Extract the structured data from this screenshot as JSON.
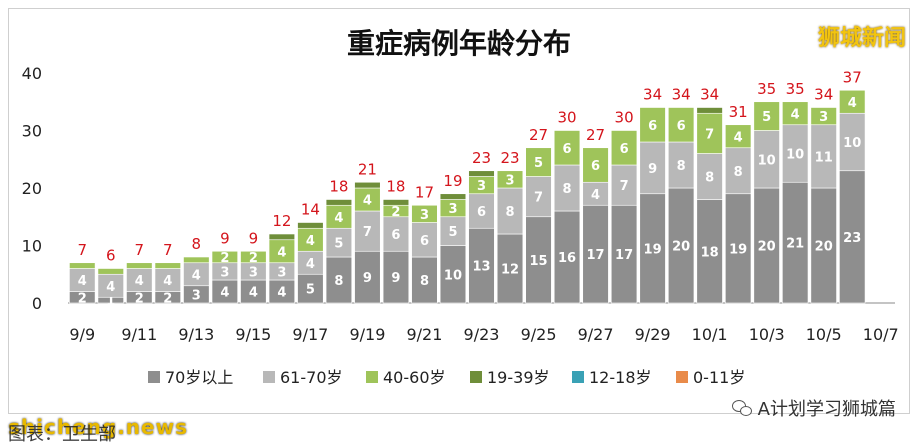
{
  "watermark": "狮城新闻",
  "footer": {
    "site": "shicheng.news",
    "caption": "图表：卫生部",
    "account": "A计划学习狮城篇"
  },
  "colors": {
    "70_plus": "#8e8e8e",
    "61_70": "#b8b8b8",
    "40_60": "#9fc45a",
    "19_39": "#6f8e3a",
    "12_18": "#3aa1b5",
    "0_11": "#e98b4a",
    "total_label": "#d4151c"
  },
  "chart_data": {
    "type": "bar",
    "stacked": true,
    "title": "重症病例年龄分布",
    "ylim": [
      0,
      40
    ],
    "yticks": [
      0,
      10,
      20,
      30,
      40
    ],
    "legend_position": "bottom",
    "grid": false,
    "categories": [
      "9/9",
      "9/10",
      "9/11",
      "9/12",
      "9/13",
      "9/14",
      "9/15",
      "9/16",
      "9/17",
      "9/18",
      "9/19",
      "9/20",
      "9/21",
      "9/22",
      "9/23",
      "9/24",
      "9/25",
      "9/26",
      "9/27",
      "9/28",
      "9/29",
      "9/30",
      "10/1",
      "10/2",
      "10/3",
      "10/4",
      "10/5",
      "10/6",
      "10/7"
    ],
    "xtick_labels": [
      "9/9",
      "9/11",
      "9/13",
      "9/15",
      "9/17",
      "9/19",
      "9/21",
      "9/23",
      "9/25",
      "9/27",
      "9/29",
      "10/1",
      "10/3",
      "10/5",
      "10/7"
    ],
    "series": [
      {
        "name": "70岁以上",
        "values": [
          2,
          1,
          2,
          2,
          3,
          4,
          4,
          4,
          5,
          8,
          9,
          9,
          8,
          10,
          13,
          12,
          15,
          16,
          17,
          17,
          19,
          20,
          18,
          19,
          20,
          21,
          20,
          23,
          null
        ]
      },
      {
        "name": "61-70岁",
        "values": [
          4,
          4,
          4,
          4,
          4,
          3,
          3,
          3,
          4,
          5,
          7,
          6,
          6,
          5,
          6,
          8,
          7,
          8,
          4,
          7,
          9,
          8,
          8,
          8,
          10,
          10,
          11,
          10,
          null
        ]
      },
      {
        "name": "40-60岁",
        "values": [
          1,
          1,
          1,
          1,
          1,
          2,
          2,
          4,
          4,
          4,
          4,
          2,
          3,
          3,
          3,
          3,
          5,
          6,
          6,
          6,
          6,
          6,
          7,
          4,
          5,
          4,
          3,
          4,
          null
        ]
      },
      {
        "name": "19-39岁",
        "values": [
          0,
          0,
          0,
          0,
          0,
          0,
          0,
          1,
          1,
          1,
          1,
          1,
          0,
          1,
          1,
          0,
          0,
          0,
          0,
          0,
          0,
          0,
          1,
          0,
          0,
          0,
          0,
          0,
          null
        ]
      },
      {
        "name": "12-18岁",
        "values": [
          0,
          0,
          0,
          0,
          0,
          0,
          0,
          0,
          0,
          0,
          0,
          0,
          0,
          0,
          0,
          0,
          0,
          0,
          0,
          0,
          0,
          0,
          0,
          0,
          0,
          0,
          0,
          0,
          null
        ]
      },
      {
        "name": "0-11岁",
        "values": [
          0,
          0,
          0,
          0,
          0,
          0,
          0,
          0,
          0,
          0,
          0,
          0,
          0,
          0,
          0,
          0,
          0,
          0,
          0,
          0,
          0,
          0,
          0,
          0,
          0,
          0,
          0,
          0,
          null
        ]
      }
    ],
    "totals": [
      7,
      6,
      7,
      7,
      8,
      9,
      9,
      12,
      14,
      18,
      21,
      18,
      17,
      19,
      23,
      23,
      27,
      30,
      27,
      30,
      34,
      34,
      34,
      31,
      35,
      35,
      34,
      37,
      null
    ],
    "segment_labels": {
      "70岁以上": [
        2,
        1,
        2,
        2,
        3,
        4,
        4,
        4,
        5,
        8,
        9,
        9,
        8,
        10,
        13,
        12,
        15,
        16,
        17,
        17,
        19,
        20,
        18,
        19,
        20,
        21,
        20,
        23,
        null
      ],
      "61-70岁": [
        4,
        4,
        4,
        4,
        4,
        3,
        3,
        3,
        4,
        5,
        7,
        6,
        6,
        5,
        6,
        8,
        7,
        8,
        4,
        7,
        9,
        8,
        8,
        8,
        10,
        10,
        11,
        10,
        null
      ],
      "40-60岁": [
        null,
        null,
        null,
        null,
        null,
        2,
        2,
        4,
        4,
        4,
        4,
        2,
        3,
        3,
        3,
        3,
        5,
        6,
        6,
        6,
        6,
        6,
        7,
        4,
        5,
        4,
        3,
        4,
        null
      ]
    }
  }
}
